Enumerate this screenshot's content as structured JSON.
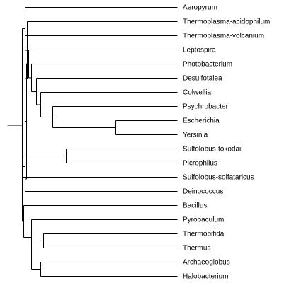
{
  "tree": {
    "leaves": [
      "Aeropyrum",
      "Thermoplasma-acidophilum",
      "Thermoplasma-volcanium",
      "Leptospira",
      "Photobacterium",
      "Desulfotalea",
      "Colwellia",
      "Psychrobacter",
      "Escherichia",
      "Yersinia",
      "Sulfolobus-tokodaii",
      "Picrophilus",
      "Sulfolobus-solfataricus",
      "Deinococcus",
      "Bacillus",
      "Pyrobaculum",
      "Thermobifida",
      "Thermus",
      "Archaeoglobus",
      "Halobacterium"
    ]
  }
}
